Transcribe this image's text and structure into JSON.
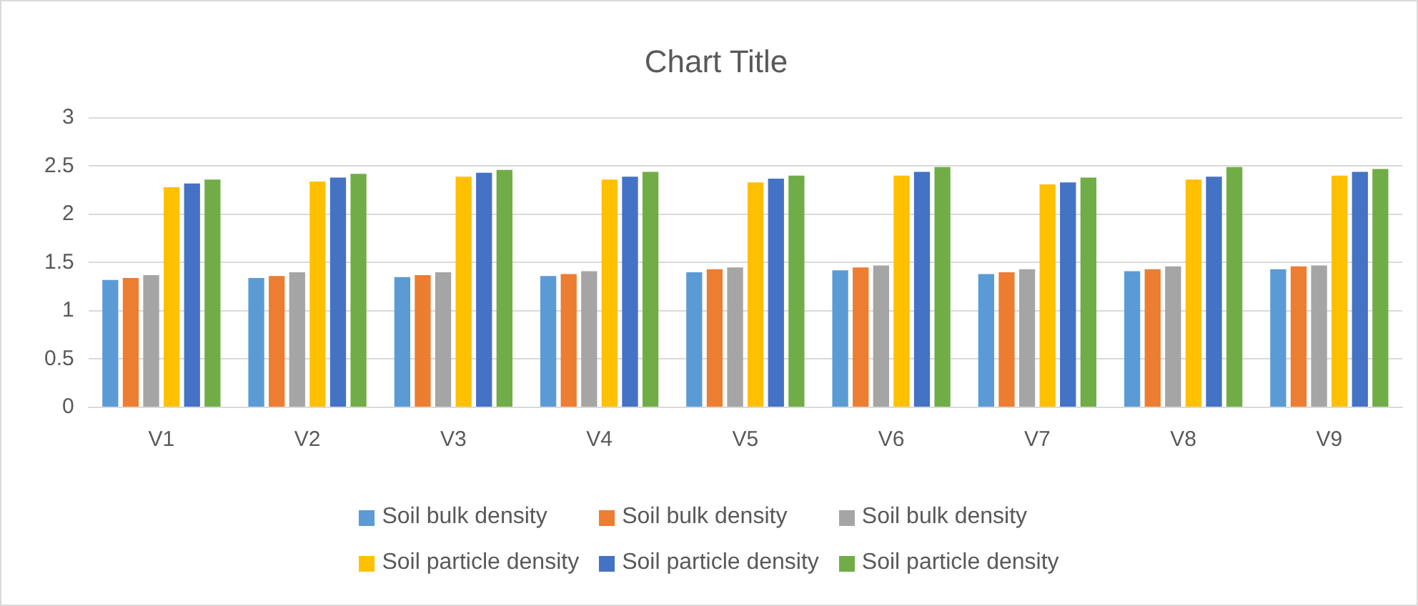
{
  "chart_data": {
    "type": "bar",
    "title": "Chart Title",
    "categories": [
      "V1",
      "V2",
      "V3",
      "V4",
      "V5",
      "V6",
      "V7",
      "V8",
      "V9"
    ],
    "series": [
      {
        "name": "Soil bulk density",
        "color": "#5b9bd5",
        "values": [
          1.32,
          1.34,
          1.35,
          1.36,
          1.4,
          1.42,
          1.38,
          1.41,
          1.43
        ]
      },
      {
        "name": "Soil bulk density",
        "color": "#ed7d31",
        "values": [
          1.34,
          1.36,
          1.37,
          1.38,
          1.43,
          1.45,
          1.4,
          1.43,
          1.46
        ]
      },
      {
        "name": "Soil bulk density",
        "color": "#a5a5a5",
        "values": [
          1.37,
          1.4,
          1.4,
          1.41,
          1.45,
          1.47,
          1.43,
          1.46,
          1.47
        ]
      },
      {
        "name": "Soil particle density",
        "color": "#ffc000",
        "values": [
          2.28,
          2.34,
          2.39,
          2.36,
          2.33,
          2.4,
          2.31,
          2.36,
          2.4
        ]
      },
      {
        "name": "Soil particle density",
        "color": "#4472c4",
        "values": [
          2.32,
          2.38,
          2.43,
          2.39,
          2.37,
          2.44,
          2.33,
          2.39,
          2.44
        ]
      },
      {
        "name": "Soil particle density",
        "color": "#70ad47",
        "values": [
          2.36,
          2.42,
          2.46,
          2.44,
          2.4,
          2.49,
          2.38,
          2.49,
          2.47
        ]
      }
    ],
    "ylim": [
      0,
      3
    ],
    "yticks": [
      0,
      0.5,
      1,
      1.5,
      2,
      2.5,
      3
    ],
    "grid": "y",
    "legend": "bottom"
  }
}
